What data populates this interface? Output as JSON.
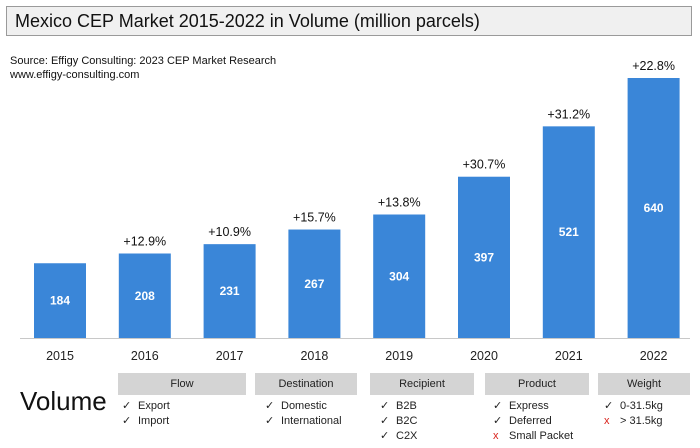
{
  "title": "Mexico CEP Market 2015-2022 in Volume (million parcels)",
  "source_line": "Source: Effigy Consulting: 2023 CEP Market Research",
  "website": "www.effigy-consulting.com",
  "chart_data": {
    "type": "bar",
    "title": "Mexico CEP Market 2015-2022 in Volume (million parcels)",
    "categories": [
      "2015",
      "2016",
      "2017",
      "2018",
      "2019",
      "2020",
      "2021",
      "2022"
    ],
    "values": [
      184,
      208,
      231,
      267,
      304,
      397,
      521,
      640
    ],
    "value_labels": [
      "184",
      "208",
      "231",
      "267",
      "304",
      "397",
      "521",
      "640"
    ],
    "growth_labels": [
      "",
      "+12.9%",
      "+10.9%",
      "+15.7%",
      "+13.8%",
      "+30.7%",
      "+31.2%",
      "+22.8%"
    ],
    "ylim": [
      0,
      640
    ],
    "bar_color": "#3a86d8",
    "xlabel": "",
    "ylabel": ""
  },
  "volume_label": "Volume",
  "categories_panel": [
    {
      "header": "Flow",
      "items": [
        {
          "mark": "✓",
          "state": "yes",
          "label": "Export"
        },
        {
          "mark": "✓",
          "state": "yes",
          "label": "Import"
        }
      ]
    },
    {
      "header": "Destination",
      "items": [
        {
          "mark": "✓",
          "state": "yes",
          "label": "Domestic"
        },
        {
          "mark": "✓",
          "state": "yes",
          "label": "International"
        }
      ]
    },
    {
      "header": "Recipient",
      "items": [
        {
          "mark": "✓",
          "state": "yes",
          "label": "B2B"
        },
        {
          "mark": "✓",
          "state": "yes",
          "label": "B2C"
        },
        {
          "mark": "✓",
          "state": "yes",
          "label": "C2X"
        }
      ]
    },
    {
      "header": "Product",
      "items": [
        {
          "mark": "✓",
          "state": "yes",
          "label": "Express"
        },
        {
          "mark": "✓",
          "state": "yes",
          "label": "Deferred"
        },
        {
          "mark": "x",
          "state": "no",
          "label": "Small Packet"
        }
      ]
    },
    {
      "header": "Weight",
      "items": [
        {
          "mark": "✓",
          "state": "yes",
          "label": "0-31.5kg"
        },
        {
          "mark": "x",
          "state": "no",
          "label": "> 31.5kg"
        }
      ]
    }
  ]
}
